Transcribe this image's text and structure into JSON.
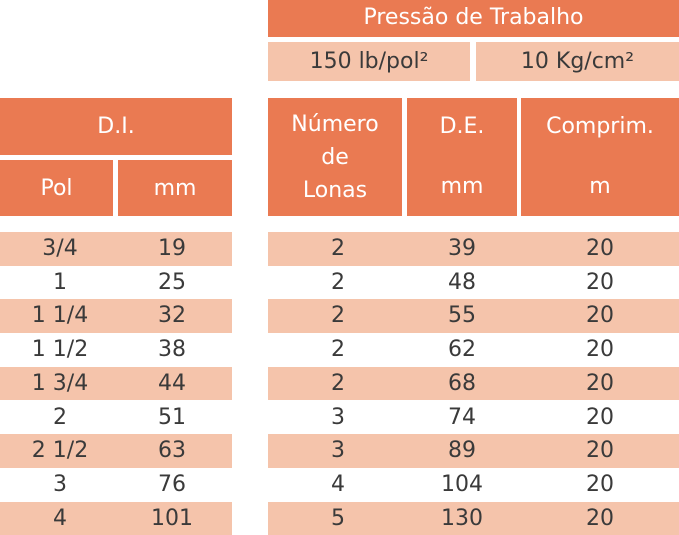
{
  "header": {
    "pressure_title": "Pressão de Trabalho",
    "pressure_psi": "150 lb/pol²",
    "pressure_kg": "10 Kg/cm²",
    "di": "D.I.",
    "pol": "Pol",
    "mm": "mm",
    "lonas": [
      "Número",
      "de",
      "Lonas"
    ],
    "de": "D.E.",
    "de_unit": "mm",
    "comp": "Comprim.",
    "comp_unit": "m"
  },
  "table": {
    "rows": [
      [
        "3/4",
        "19",
        "2",
        "39",
        "20"
      ],
      [
        "1",
        "25",
        "2",
        "48",
        "20"
      ],
      [
        "1 1/4",
        "32",
        "2",
        "55",
        "20"
      ],
      [
        "1 1/2",
        "38",
        "2",
        "62",
        "20"
      ],
      [
        "1 3/4",
        "44",
        "2",
        "68",
        "20"
      ],
      [
        "2",
        "51",
        "3",
        "74",
        "20"
      ],
      [
        "2 1/2",
        "63",
        "3",
        "89",
        "20"
      ],
      [
        "3",
        "76",
        "4",
        "104",
        "20"
      ],
      [
        "4",
        "101",
        "5",
        "130",
        "20"
      ]
    ]
  }
}
